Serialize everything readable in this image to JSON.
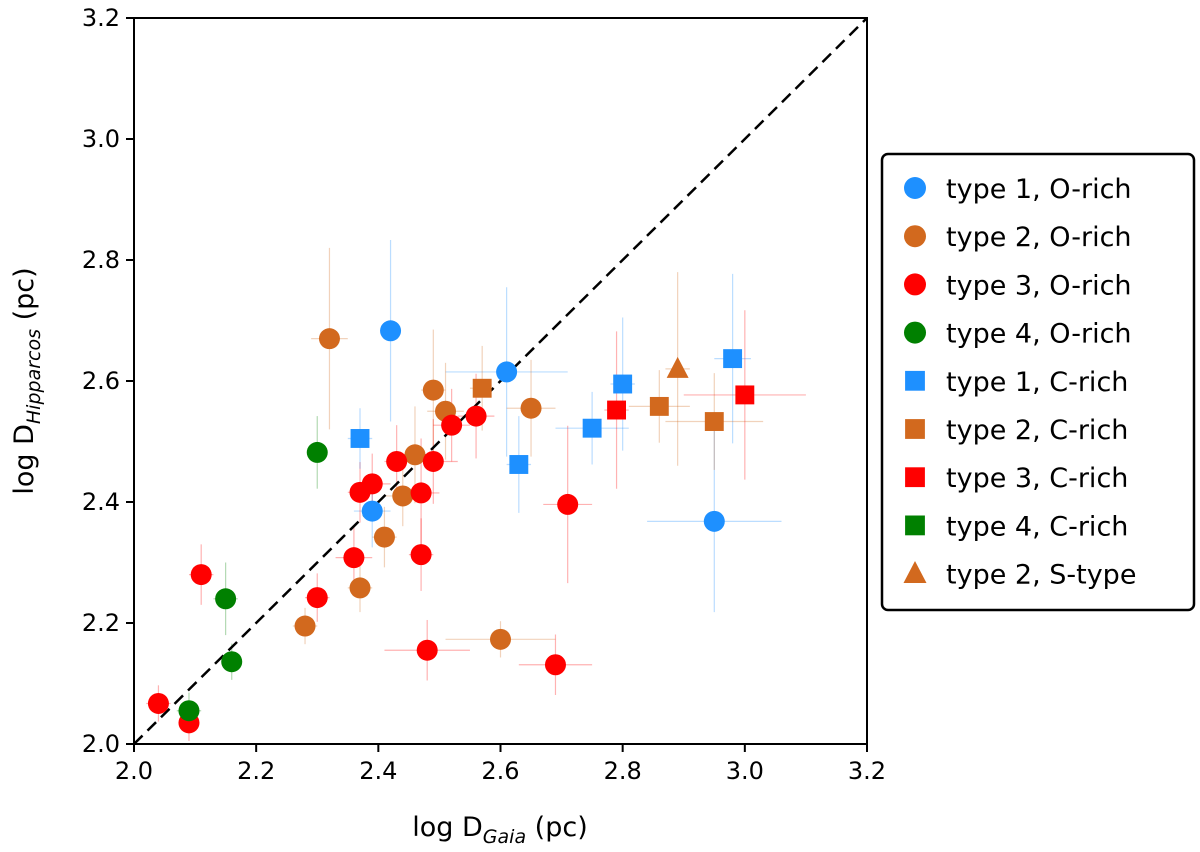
{
  "chart_data": {
    "type": "scatter",
    "title": "",
    "xlabel": {
      "prefix": "log D",
      "sub": "Gaia",
      "suffix": " (pc)"
    },
    "ylabel": {
      "prefix": "log D",
      "sub": "Hipparcos",
      "suffix": " (pc)"
    },
    "xlim": [
      2.0,
      3.2
    ],
    "ylim": [
      2.0,
      3.2
    ],
    "xticks": [
      "2.0",
      "2.2",
      "2.4",
      "2.6",
      "2.8",
      "3.0",
      "3.2"
    ],
    "yticks": [
      "2.0",
      "2.2",
      "2.4",
      "2.6",
      "2.8",
      "3.0",
      "3.2"
    ],
    "reference_line": {
      "style": "dashed",
      "from": [
        2.0,
        2.0
      ],
      "to": [
        3.2,
        3.2
      ]
    },
    "legend_position": "right",
    "colors": {
      "type1": "#1e90ff",
      "type2": "#d2691e",
      "type3": "#ff0000",
      "type4": "#008000"
    },
    "series": [
      {
        "name": "type 1, O-rich",
        "marker": "circle",
        "color": "#1e90ff",
        "points": [
          {
            "x": 2.42,
            "y": 2.683,
            "xe": 0.01,
            "ye": 0.15
          },
          {
            "x": 2.61,
            "y": 2.615,
            "xe": 0.1,
            "ye": 0.14
          },
          {
            "x": 2.39,
            "y": 2.385,
            "xe": 0.03,
            "ye": 0.06
          },
          {
            "x": 2.95,
            "y": 2.368,
            "xe": 0.11,
            "ye": 0.15
          }
        ]
      },
      {
        "name": "type 2, O-rich",
        "marker": "circle",
        "color": "#d2691e",
        "points": [
          {
            "x": 2.32,
            "y": 2.67,
            "xe": 0.03,
            "ye": 0.15
          },
          {
            "x": 2.49,
            "y": 2.585,
            "xe": 0.02,
            "ye": 0.1
          },
          {
            "x": 2.51,
            "y": 2.55,
            "xe": 0.03,
            "ye": 0.08
          },
          {
            "x": 2.65,
            "y": 2.555,
            "xe": 0.04,
            "ye": 0.08
          },
          {
            "x": 2.46,
            "y": 2.478,
            "xe": 0.03,
            "ye": 0.08
          },
          {
            "x": 2.44,
            "y": 2.41,
            "xe": 0.03,
            "ye": 0.05
          },
          {
            "x": 2.41,
            "y": 2.342,
            "xe": 0.02,
            "ye": 0.05
          },
          {
            "x": 2.37,
            "y": 2.258,
            "xe": 0.02,
            "ye": 0.04
          },
          {
            "x": 2.28,
            "y": 2.195,
            "xe": 0.02,
            "ye": 0.03
          },
          {
            "x": 2.6,
            "y": 2.173,
            "xe": 0.09,
            "ye": 0.03
          }
        ]
      },
      {
        "name": "type 3, O-rich",
        "marker": "circle",
        "color": "#ff0000",
        "points": [
          {
            "x": 2.56,
            "y": 2.542,
            "xe": 0.03,
            "ye": 0.07
          },
          {
            "x": 2.52,
            "y": 2.527,
            "xe": 0.03,
            "ye": 0.06
          },
          {
            "x": 2.49,
            "y": 2.467,
            "xe": 0.04,
            "ye": 0.07
          },
          {
            "x": 2.43,
            "y": 2.467,
            "xe": 0.02,
            "ye": 0.06
          },
          {
            "x": 2.39,
            "y": 2.43,
            "xe": 0.03,
            "ye": 0.05
          },
          {
            "x": 2.37,
            "y": 2.416,
            "xe": 0.02,
            "ye": 0.05
          },
          {
            "x": 2.47,
            "y": 2.415,
            "xe": 0.03,
            "ye": 0.09
          },
          {
            "x": 2.71,
            "y": 2.396,
            "xe": 0.04,
            "ye": 0.13
          },
          {
            "x": 2.36,
            "y": 2.308,
            "xe": 0.03,
            "ye": 0.05
          },
          {
            "x": 2.47,
            "y": 2.313,
            "xe": 0.02,
            "ye": 0.06
          },
          {
            "x": 2.3,
            "y": 2.242,
            "xe": 0.02,
            "ye": 0.04
          },
          {
            "x": 2.11,
            "y": 2.28,
            "xe": 0.02,
            "ye": 0.05
          },
          {
            "x": 2.48,
            "y": 2.155,
            "xe": 0.07,
            "ye": 0.05
          },
          {
            "x": 2.69,
            "y": 2.131,
            "xe": 0.06,
            "ye": 0.05
          },
          {
            "x": 2.04,
            "y": 2.067,
            "xe": 0.02,
            "ye": 0.03
          },
          {
            "x": 2.09,
            "y": 2.035,
            "xe": 0.01,
            "ye": 0.03
          }
        ]
      },
      {
        "name": "type 4, O-rich",
        "marker": "circle",
        "color": "#008000",
        "points": [
          {
            "x": 2.3,
            "y": 2.482,
            "xe": 0.01,
            "ye": 0.06
          },
          {
            "x": 2.15,
            "y": 2.24,
            "xe": 0.02,
            "ye": 0.06
          },
          {
            "x": 2.16,
            "y": 2.136,
            "xe": 0.01,
            "ye": 0.03
          },
          {
            "x": 2.09,
            "y": 2.055,
            "xe": 0.02,
            "ye": 0.03
          }
        ]
      },
      {
        "name": "type 1, C-rich",
        "marker": "square",
        "color": "#1e90ff",
        "points": [
          {
            "x": 2.98,
            "y": 2.637,
            "xe": 0.03,
            "ye": 0.14
          },
          {
            "x": 2.8,
            "y": 2.595,
            "xe": 0.02,
            "ye": 0.11
          },
          {
            "x": 2.75,
            "y": 2.522,
            "xe": 0.06,
            "ye": 0.06
          },
          {
            "x": 2.37,
            "y": 2.505,
            "xe": 0.02,
            "ye": 0.05
          },
          {
            "x": 2.63,
            "y": 2.462,
            "xe": 0.02,
            "ye": 0.08
          }
        ]
      },
      {
        "name": "type 2, C-rich",
        "marker": "square",
        "color": "#d2691e",
        "points": [
          {
            "x": 2.57,
            "y": 2.588,
            "xe": 0.02,
            "ye": 0.07
          },
          {
            "x": 2.86,
            "y": 2.558,
            "xe": 0.05,
            "ye": 0.06
          },
          {
            "x": 2.95,
            "y": 2.533,
            "xe": 0.08,
            "ye": 0.08
          }
        ]
      },
      {
        "name": "type 3, C-rich",
        "marker": "square",
        "color": "#ff0000",
        "points": [
          {
            "x": 2.79,
            "y": 2.552,
            "xe": 0.02,
            "ye": 0.13
          },
          {
            "x": 3.0,
            "y": 2.577,
            "xe": 0.1,
            "ye": 0.14
          }
        ]
      },
      {
        "name": "type 4, C-rich",
        "marker": "square",
        "color": "#008000",
        "points": []
      },
      {
        "name": "type 2, S-type",
        "marker": "triangle",
        "color": "#d2691e",
        "points": [
          {
            "x": 2.89,
            "y": 2.62,
            "xe": 0.02,
            "ye": 0.16
          }
        ]
      }
    ]
  }
}
